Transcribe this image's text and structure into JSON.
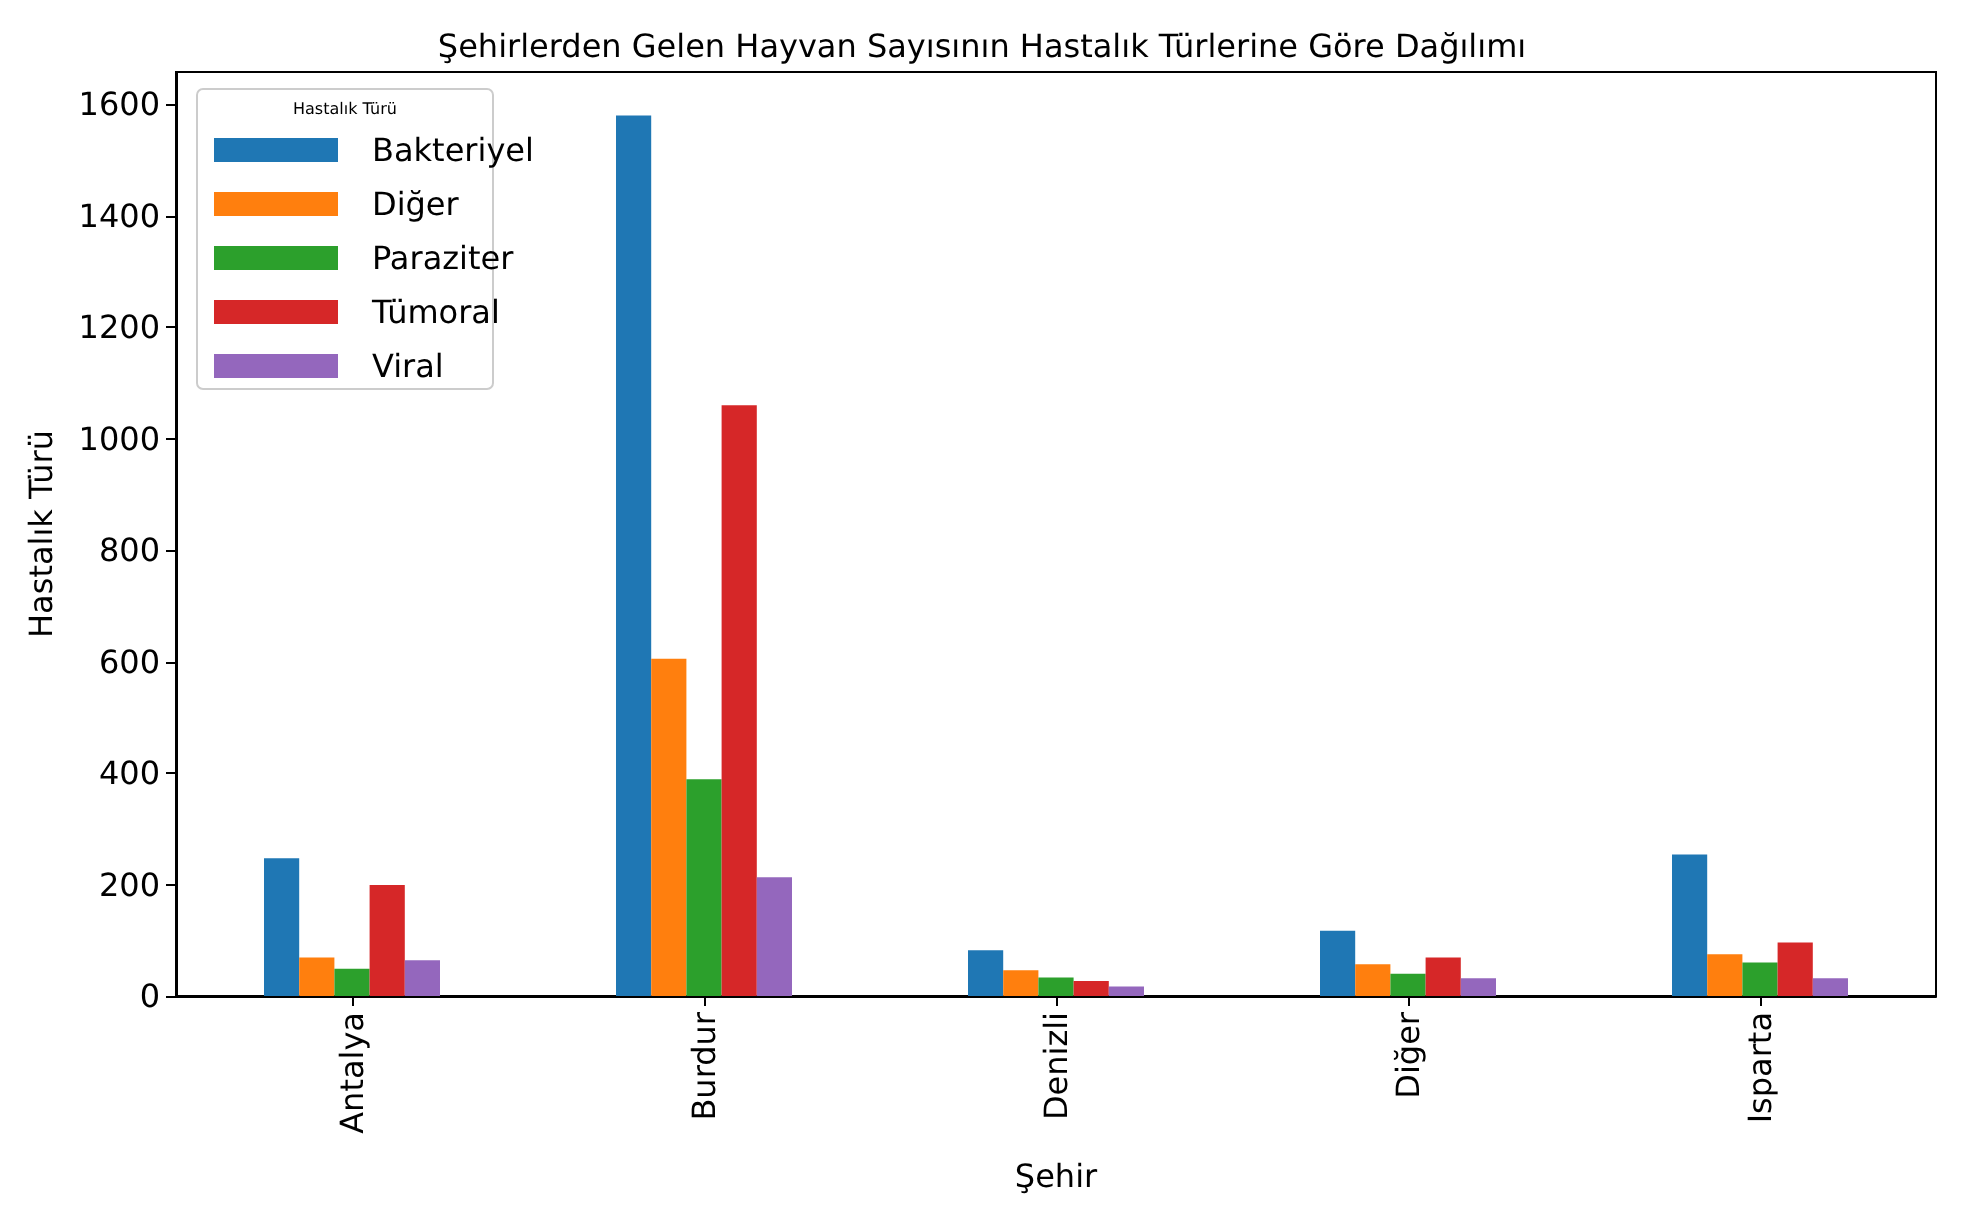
{
  "chart_data": {
    "type": "bar",
    "title": "Şehirlerden Gelen Hayvan Sayısının Hastalık Türlerine Göre Dağılımı",
    "xlabel": "Şehir",
    "ylabel": "Hastalık Türü",
    "legend_title": "Hastalık Türü",
    "legend": "top left",
    "grid": false,
    "categories": [
      "Antalya",
      "Burdur",
      "Denizli",
      "Diğer",
      "Isparta"
    ],
    "ylim": [
      0,
      1658
    ],
    "yticks": [
      0,
      200,
      400,
      600,
      800,
      1000,
      1200,
      1400,
      1600
    ],
    "series": [
      {
        "name": "Bakteriyel",
        "color": "#1f77b4",
        "values": [
          247,
          1580,
          82,
          117,
          254
        ]
      },
      {
        "name": "Diğer",
        "color": "#ff7f0e",
        "values": [
          69,
          605,
          46,
          57,
          75
        ]
      },
      {
        "name": "Paraziter",
        "color": "#2ca02c",
        "values": [
          49,
          389,
          33,
          40,
          60
        ]
      },
      {
        "name": "Tümoral",
        "color": "#d62728",
        "values": [
          199,
          1060,
          27,
          69,
          96
        ]
      },
      {
        "name": "Viral",
        "color": "#9467bd",
        "values": [
          64,
          213,
          17,
          32,
          32
        ]
      }
    ]
  }
}
